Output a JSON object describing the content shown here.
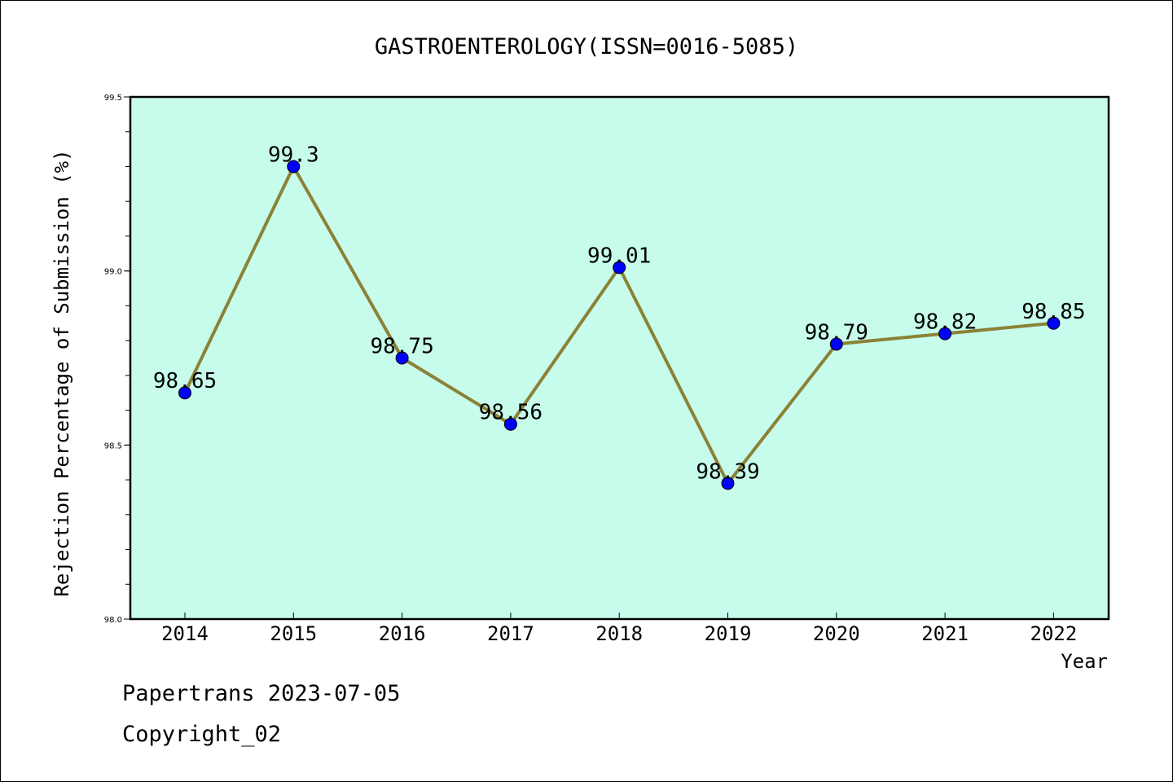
{
  "chart_data": {
    "type": "line",
    "title": "GASTROENTEROLOGY(ISSN=0016-5085)",
    "xlabel": "Year",
    "ylabel": "Rejection Percentage of Submission (%)",
    "categories": [
      "2014",
      "2015",
      "2016",
      "2017",
      "2018",
      "2019",
      "2020",
      "2021",
      "2022"
    ],
    "values": [
      98.65,
      99.3,
      98.75,
      98.56,
      99.01,
      98.39,
      98.79,
      98.82,
      98.85
    ],
    "data_labels": [
      "98.65",
      "99.3",
      "98.75",
      "98.56",
      "99.01",
      "98.39",
      "98.79",
      "98.82",
      "98.85"
    ],
    "ylim": [
      98.0,
      99.5
    ],
    "yticks": [
      "98.0",
      "98.5",
      "99.0",
      "99.5"
    ],
    "y_minor_step": 0.1,
    "grid": false,
    "legend": "none",
    "colors": {
      "plot_background": "#c7fcec",
      "line": "#8b8236",
      "marker": "#0000ff",
      "axes": "#000000"
    }
  },
  "footer": {
    "line1": "Papertrans 2023-07-05",
    "line2": "Copyright_02"
  }
}
